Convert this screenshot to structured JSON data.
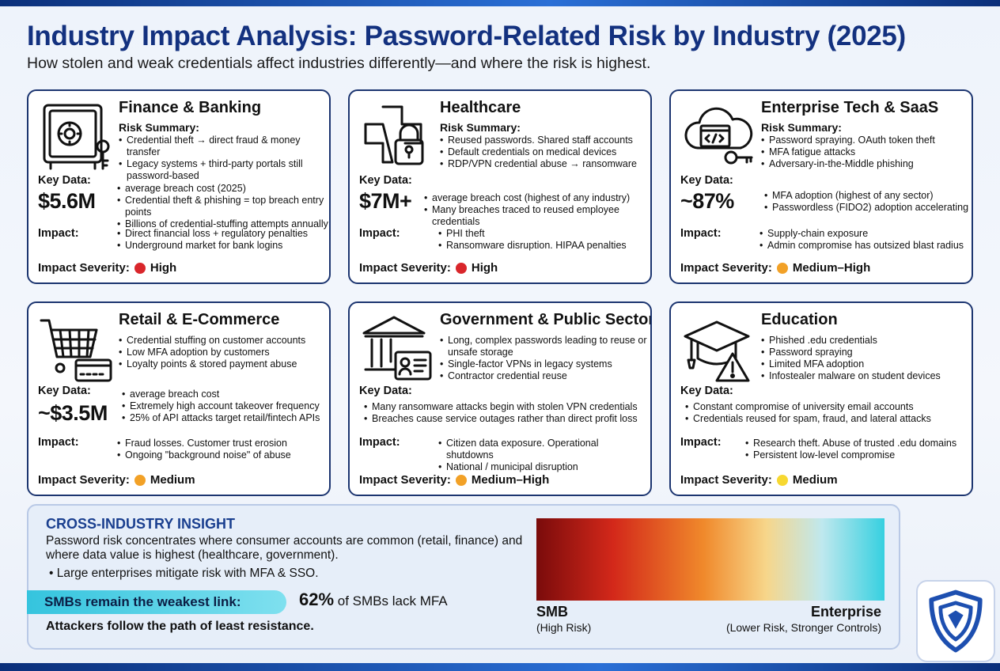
{
  "header": {
    "title": "Industry Impact Analysis: Password-Related Risk by Industry (2025)",
    "subtitle": "How stolen and weak credentials affect industries differently—and where the risk is highest."
  },
  "labels": {
    "risk_summary": "Risk Summary:",
    "key_data": "Key Data:",
    "impact": "Impact:",
    "impact_severity": "Impact Severity:"
  },
  "cards": [
    {
      "name": "Finance & Banking",
      "icon": "safe-icon",
      "risk": [
        "Credential theft → direct fraud & money transfer",
        "Legacy systems + third-party portals still password-based"
      ],
      "key_value": "$5.6M",
      "key_points": [
        "average breach cost (2025)",
        "Credential theft & phishing = top breach entry points",
        "Billions of credential-stuffing attempts annually"
      ],
      "impact": [
        "Direct financial loss + regulatory penalties",
        "Underground market for bank logins"
      ],
      "severity": "High",
      "severity_color": "#d9262b"
    },
    {
      "name": "Healthcare",
      "icon": "medical-cross-lock-icon",
      "risk": [
        "Reused passwords. Shared staff accounts",
        "Default credentials on medical devices",
        "RDP/VPN credential abuse → ransomware"
      ],
      "key_value": "$7M+",
      "key_points": [
        "average breach cost (highest of any industry)",
        "Many breaches traced to reused employee credentials"
      ],
      "impact": [
        "PHI theft",
        "Ransomware disruption. HIPAA penalties"
      ],
      "severity": "High",
      "severity_color": "#d9262b"
    },
    {
      "name": "Enterprise Tech & SaaS",
      "icon": "cloud-code-key-icon",
      "risk": [
        "Password spraying. OAuth token theft",
        "MFA fatigue attacks",
        "Adversary-in-the-Middle phishing"
      ],
      "key_value": "~87%",
      "key_points": [
        "MFA adoption (highest of any sector)",
        "Passwordless (FIDO2) adoption accelerating"
      ],
      "impact": [
        "Supply-chain exposure",
        "Admin compromise has outsized blast radius"
      ],
      "severity": "Medium–High",
      "severity_color": "#f2a127"
    },
    {
      "name": "Retail & E-Commerce",
      "icon": "shopping-cart-card-icon",
      "risk": [
        "Credential stuffing on customer accounts",
        "Low MFA adoption by customers",
        "Loyalty points & stored payment abuse"
      ],
      "key_value": "~$3.5M",
      "key_points": [
        "average breach cost",
        "Extremely high account takeover frequency",
        "25% of API attacks target retail/fintech APIs"
      ],
      "impact": [
        "Fraud losses. Customer trust erosion",
        "Ongoing \"background noise\" of abuse"
      ],
      "severity": "Medium",
      "severity_color": "#f2a127"
    },
    {
      "name": "Government & Public Sector",
      "icon": "government-building-id-icon",
      "risk": [
        "Long, complex passwords leading to reuse or unsafe storage",
        "Single-factor VPNs in legacy systems",
        "Contractor credential reuse"
      ],
      "key_value": "",
      "key_points": [
        "Many ransomware attacks begin with stolen VPN credentials",
        "Breaches cause service outages rather than direct profit loss"
      ],
      "impact": [
        "Citizen data exposure. Operational shutdowns",
        "National / municipal disruption"
      ],
      "severity": "Medium–High",
      "severity_color": "#f2a127"
    },
    {
      "name": "Education",
      "icon": "graduation-cap-warning-icon",
      "risk": [
        "Phished .edu credentials",
        "Password spraying",
        "Limited MFA adoption",
        "Infostealer malware on student devices"
      ],
      "key_value": "",
      "key_points": [
        "Constant compromise of university email accounts",
        "Credentials reused for spam, fraud, and lateral attacks"
      ],
      "impact": [
        "Research theft. Abuse of trusted .edu domains",
        "Persistent low-level compromise"
      ],
      "severity": "Medium",
      "severity_color": "#f7d831"
    }
  ],
  "insight": {
    "title": "CROSS-INDUSTRY INSIGHT",
    "paragraph": "Password risk concentrates where consumer accounts are common (retail, finance) and where data value is highest (healthcare, government).",
    "bullet": "Large enterprises mitigate risk with MFA & SSO.",
    "smb_label": "SMBs remain the weakest link:",
    "smb_stat_value": "62%",
    "smb_stat_text": "of SMBs lack MFA",
    "footer": "Attackers follow the path of least resistance.",
    "scale_left": "SMB",
    "scale_left_sub": "(High Risk)",
    "scale_right": "Enterprise",
    "scale_right_sub": "(Lower Risk, Stronger Controls)"
  },
  "logo": {
    "icon": "shield-logo-icon"
  }
}
